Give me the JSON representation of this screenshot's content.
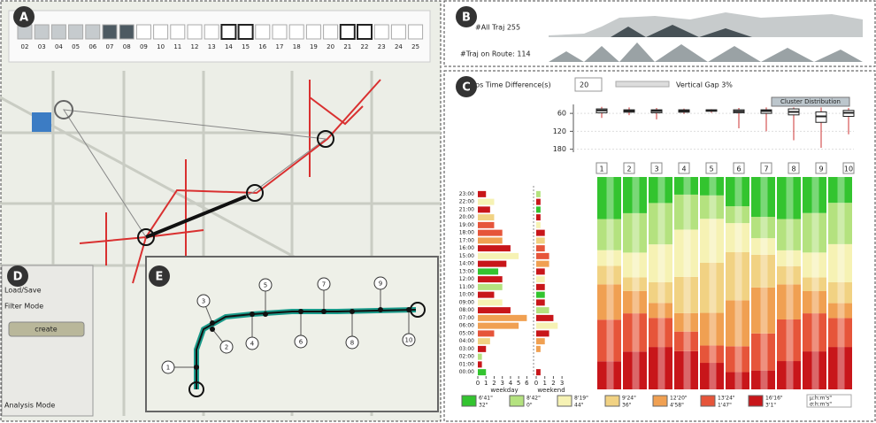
{
  "panels": {
    "a": "A",
    "b": "B",
    "c": "C",
    "d": "D",
    "e": "E"
  },
  "calendar": {
    "days": [
      "02",
      "03",
      "04",
      "05",
      "06",
      "07",
      "08",
      "09",
      "10",
      "11",
      "12",
      "13",
      "14",
      "15",
      "16",
      "17",
      "18",
      "19",
      "20",
      "21",
      "22",
      "23",
      "24",
      "25"
    ],
    "states": [
      "light",
      "light",
      "light",
      "light",
      "light",
      "dark",
      "dark",
      "empty",
      "empty",
      "empty",
      "empty",
      "empty",
      "bold",
      "bold",
      "empty",
      "empty",
      "empty",
      "empty",
      "empty",
      "bold",
      "bold",
      "empty",
      "empty",
      "empty"
    ]
  },
  "overview": {
    "all_label": "#All Traj 255",
    "route_label": "#Traj on Route: 114"
  },
  "controls": {
    "gap_label": "ps Time Difference(s)",
    "gap_value": "20",
    "vgap_label": "Vertical Gap 3%",
    "cluster_button": "Cluster Distribution"
  },
  "boxplot": {
    "ylim": [
      30,
      190
    ],
    "inverted": true,
    "yticks": [
      60,
      120,
      180
    ],
    "clusters": [
      "1",
      "2",
      "3",
      "4",
      "5",
      "6",
      "7",
      "8",
      "9",
      "10"
    ],
    "boxes": [
      {
        "low": 38,
        "q1": 45,
        "median": 50,
        "q3": 58,
        "high": 75
      },
      {
        "low": 40,
        "q1": 48,
        "median": 52,
        "q3": 56,
        "high": 66
      },
      {
        "low": 42,
        "q1": 48,
        "median": 52,
        "q3": 58,
        "high": 80
      },
      {
        "low": 44,
        "q1": 48,
        "median": 52,
        "q3": 56,
        "high": 62
      },
      {
        "low": 46,
        "q1": 48,
        "median": 50,
        "q3": 53,
        "high": 58
      },
      {
        "low": 42,
        "q1": 48,
        "median": 53,
        "q3": 58,
        "high": 110
      },
      {
        "low": 40,
        "q1": 48,
        "median": 52,
        "q3": 60,
        "high": 120
      },
      {
        "low": 40,
        "q1": 45,
        "median": 55,
        "q3": 65,
        "high": 150
      },
      {
        "low": 40,
        "q1": 55,
        "median": 70,
        "q3": 90,
        "high": 175
      },
      {
        "low": 42,
        "q1": 50,
        "median": 58,
        "q3": 70,
        "high": 130
      }
    ]
  },
  "histogram": {
    "hours": [
      "00:00",
      "01:00",
      "02:00",
      "03:00",
      "04:00",
      "05:00",
      "06:00",
      "07:00",
      "08:00",
      "09:00",
      "10:00",
      "11:00",
      "12:00",
      "13:00",
      "14:00",
      "15:00",
      "16:00",
      "17:00",
      "18:00",
      "19:00",
      "20:00",
      "21:00",
      "22:00",
      "23:00"
    ],
    "weekday": [
      1,
      0.5,
      0.5,
      1,
      1.5,
      2,
      5,
      6,
      4,
      3,
      2,
      3,
      3,
      2.5,
      3.5,
      5,
      4,
      3,
      3,
      2,
      2,
      1.5,
      2,
      1
    ],
    "weekend": [
      0.5,
      0,
      0,
      0.5,
      1,
      1.5,
      2.5,
      2,
      1.5,
      1,
      1,
      1,
      1,
      1,
      1.5,
      1.5,
      1,
      1,
      1,
      0.5,
      0.5,
      0.5,
      0.5,
      0.5
    ],
    "weekday_xlim": [
      0,
      6.5
    ],
    "weekday_ticks": [
      0,
      1,
      2,
      3,
      4,
      5,
      6
    ],
    "weekend_xlim": [
      0,
      3.5
    ],
    "weekend_ticks": [
      0,
      1,
      2,
      3
    ],
    "weekday_label": "weekday",
    "weekend_label": "weekend"
  },
  "legend": [
    {
      "mu": "6'41\"",
      "sigma": "32\"",
      "color": "#33c42f"
    },
    {
      "mu": "8'42\"",
      "sigma": "0\"",
      "color": "#b4e27f"
    },
    {
      "mu": "8'19\"",
      "sigma": "44\"",
      "color": "#f6f2b4"
    },
    {
      "mu": "9'24\"",
      "sigma": "36\"",
      "color": "#f1d283"
    },
    {
      "mu": "12'20\"",
      "sigma": "4'58\"",
      "color": "#f0a052"
    },
    {
      "mu": "13'24\"",
      "sigma": "1'47\"",
      "color": "#e6553a"
    },
    {
      "mu": "16'16\"",
      "sigma": "3'1\"",
      "color": "#c8161a"
    }
  ],
  "legend_unit": {
    "mu": "μ:h:m's\"",
    "sigma": "σ:h:m's\""
  },
  "sidebar": {
    "load_save": "Load/Save",
    "filter_mode": "Filter Mode",
    "create": "create",
    "analysis_mode": "Analysis Mode"
  },
  "route_stops": [
    "1",
    "2",
    "3",
    "4",
    "5",
    "6",
    "7",
    "8",
    "9",
    "10"
  ]
}
